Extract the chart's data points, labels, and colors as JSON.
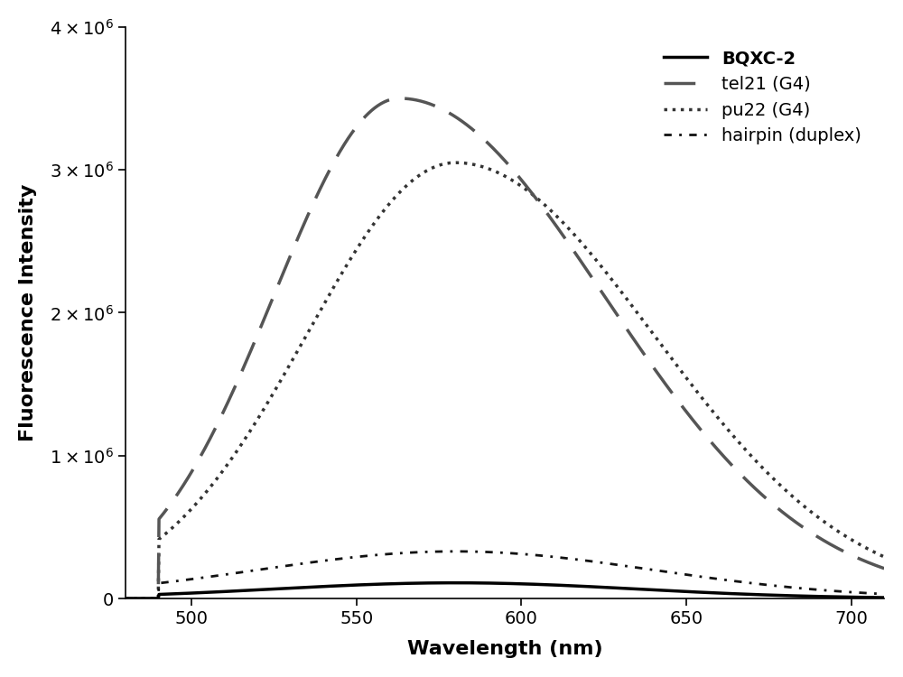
{
  "title": "",
  "xlabel": "Wavelength (nm)",
  "ylabel": "Fluorescence Intensity",
  "xlim": [
    480,
    710
  ],
  "ylim": [
    0,
    4000000.0
  ],
  "background_color": "#ffffff",
  "series": {
    "BQXC2": {
      "label": "BQXC-2",
      "color": "#000000",
      "linestyle": "solid",
      "linewidth": 2.5,
      "peak": 580,
      "amplitude": 110000,
      "sigma": 55
    },
    "tel21": {
      "label": "tel21 (G4)",
      "color": "#555555",
      "linestyle": "dashed",
      "linewidth": 2.5,
      "peak": 563,
      "amplitude": 3500000,
      "sigma": 48
    },
    "pu22": {
      "label": "pu22 (G4)",
      "color": "#333333",
      "linestyle": "dotted",
      "linewidth": 2.5,
      "peak": 580,
      "amplitude": 3050000,
      "sigma": 52
    },
    "hairpin": {
      "label": "hairpin (duplex)",
      "color": "#111111",
      "linestyle": "dashdot",
      "linewidth": 2.0,
      "peak": 580,
      "amplitude": 330000,
      "sigma": 60
    }
  },
  "legend_fontsize": 14,
  "axis_fontsize": 16,
  "tick_fontsize": 14
}
